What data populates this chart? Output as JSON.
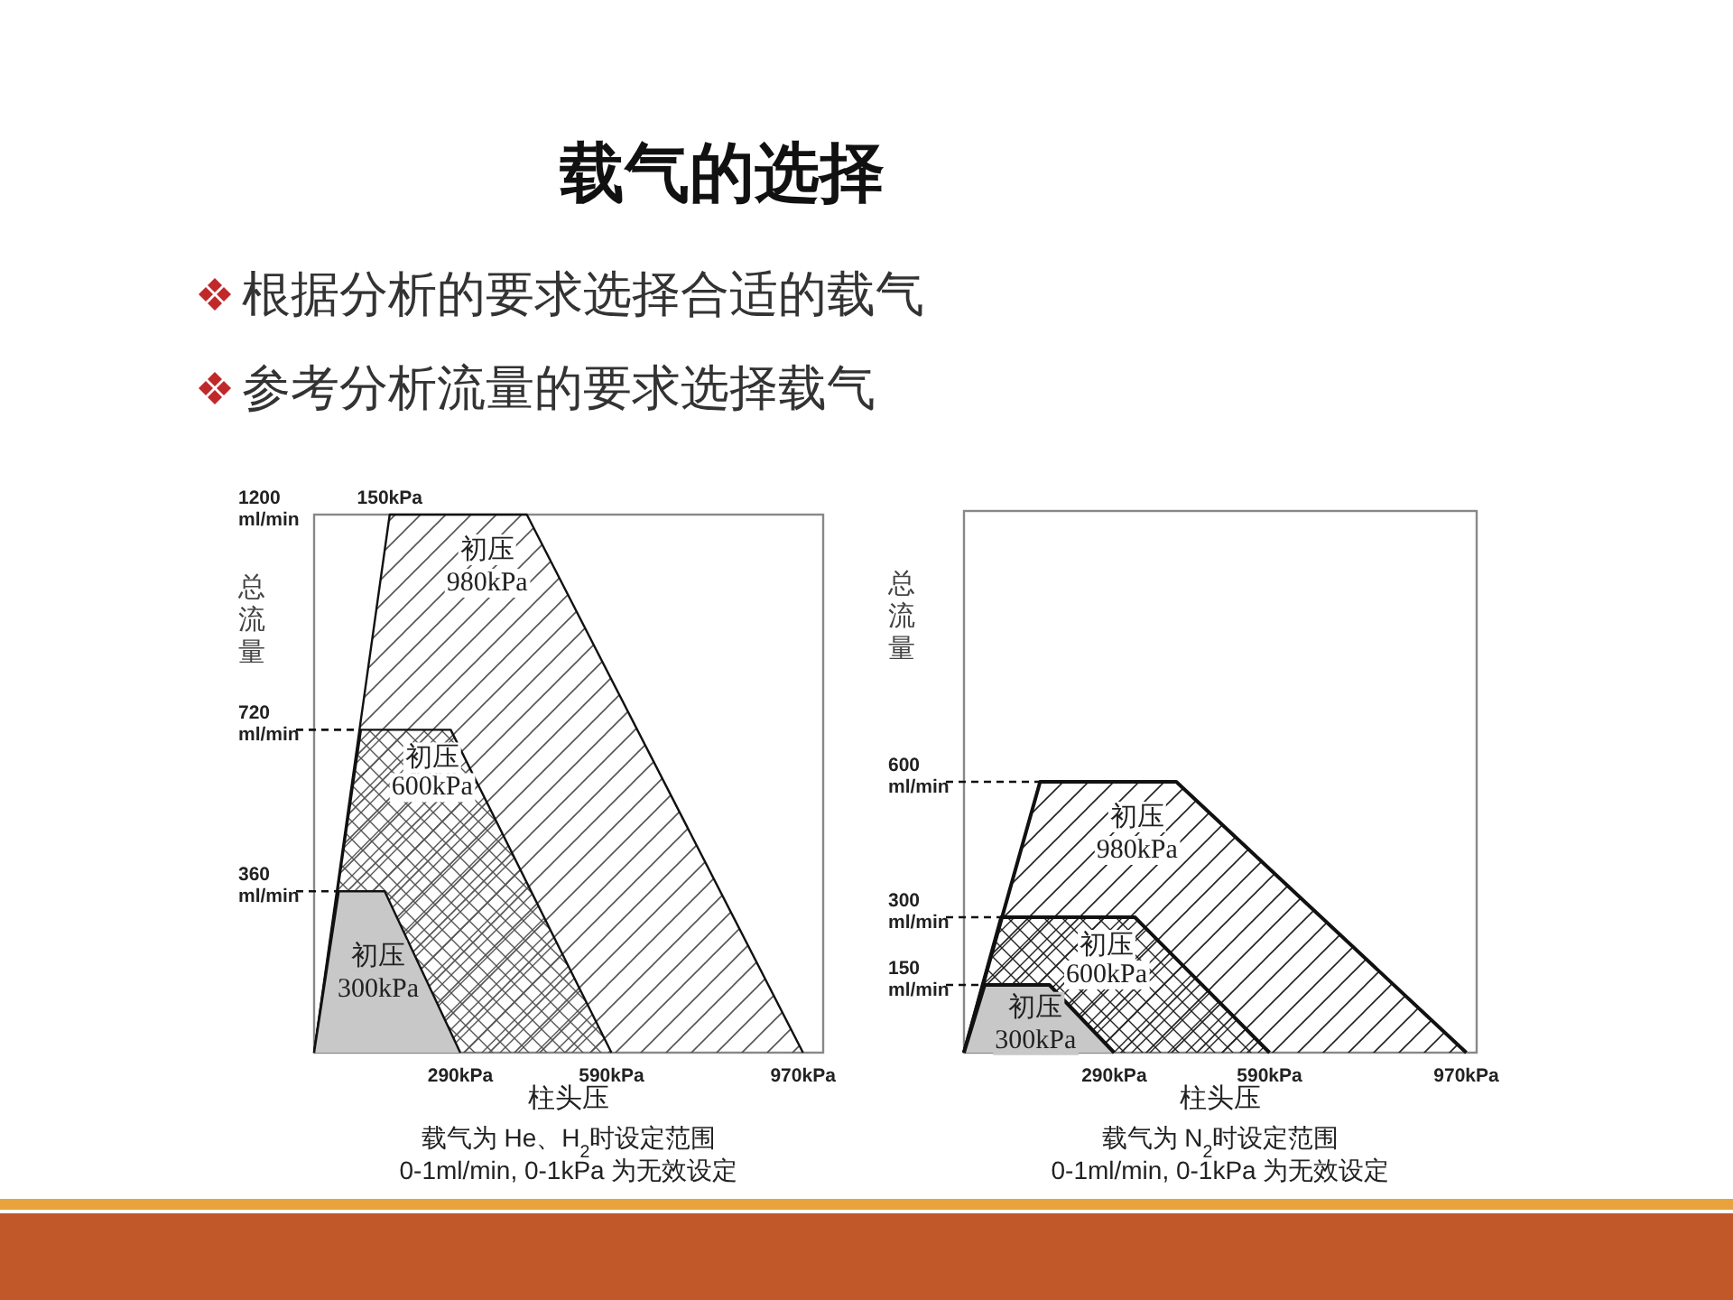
{
  "chart_data": [
    {
      "type": "other",
      "title": "载气的选择",
      "annotations": [
        "根据分析的要求选择合适的载气",
        "参考分析流量的要求选择载气"
      ]
    },
    {
      "type": "area",
      "xlabel": "柱头压",
      "ylabel": "总流量",
      "xlim": [
        0,
        1010
      ],
      "ylim": [
        0,
        1200
      ],
      "xticks": [
        {
          "value": 290,
          "label": "290kPa"
        },
        {
          "value": 590,
          "label": "590kPa"
        },
        {
          "value": 970,
          "label": "970kPa"
        }
      ],
      "yticks": [
        {
          "value": 360,
          "label": "360 ml/min"
        },
        {
          "value": 720,
          "label": "720 ml/min"
        },
        {
          "value": 1200,
          "label": "1200 ml/min"
        }
      ],
      "series": [
        {
          "name": "初压 980kPa",
          "color": "#555555",
          "x": [
            0,
            150,
            422,
            970
          ],
          "values": [
            0,
            1200,
            1200,
            0
          ]
        },
        {
          "name": "初压 600kPa",
          "color": "#555555",
          "x": [
            0,
            93,
            271,
            590
          ],
          "values": [
            0,
            720,
            720,
            0
          ]
        },
        {
          "name": "初压 300kPa",
          "color": "#c8c8c8",
          "x": [
            0,
            49,
            140,
            290
          ],
          "values": [
            0,
            360,
            360,
            0
          ]
        }
      ],
      "annotations": [
        {
          "text": "150kPa",
          "x": 150,
          "y": 1200
        },
        "载气为 He、H$_{2}$时设定范围",
        "0-1ml/min, 0-1kPa 为无效设定"
      ]
    },
    {
      "type": "area",
      "xlabel": "柱头压",
      "ylabel": "总流量",
      "xlim": [
        0,
        990
      ],
      "ylim": [
        0,
        1200
      ],
      "xticks": [
        {
          "value": 290,
          "label": "290kPa"
        },
        {
          "value": 590,
          "label": "590kPa"
        },
        {
          "value": 970,
          "label": "970kPa"
        }
      ],
      "yticks": [
        {
          "value": 150,
          "label": "150 ml/min"
        },
        {
          "value": 300,
          "label": "300 ml/min"
        },
        {
          "value": 600,
          "label": "600 ml/min"
        }
      ],
      "series": [
        {
          "name": "初压 980kPa",
          "color": "#222222",
          "x": [
            0,
            147,
            410,
            970
          ],
          "values": [
            0,
            600,
            600,
            0
          ]
        },
        {
          "name": "初压 600kPa",
          "color": "#222222",
          "x": [
            0,
            72,
            330,
            590
          ],
          "values": [
            0,
            300,
            300,
            0
          ]
        },
        {
          "name": "初压 300kPa",
          "color": "#c8c8c8",
          "x": [
            0,
            40,
            165,
            290
          ],
          "values": [
            0,
            150,
            150,
            0
          ]
        }
      ],
      "annotations": [
        "载气为 N$_{2}$时设定范围",
        "0-1ml/min, 0-1kPa 为无效设定"
      ]
    }
  ]
}
